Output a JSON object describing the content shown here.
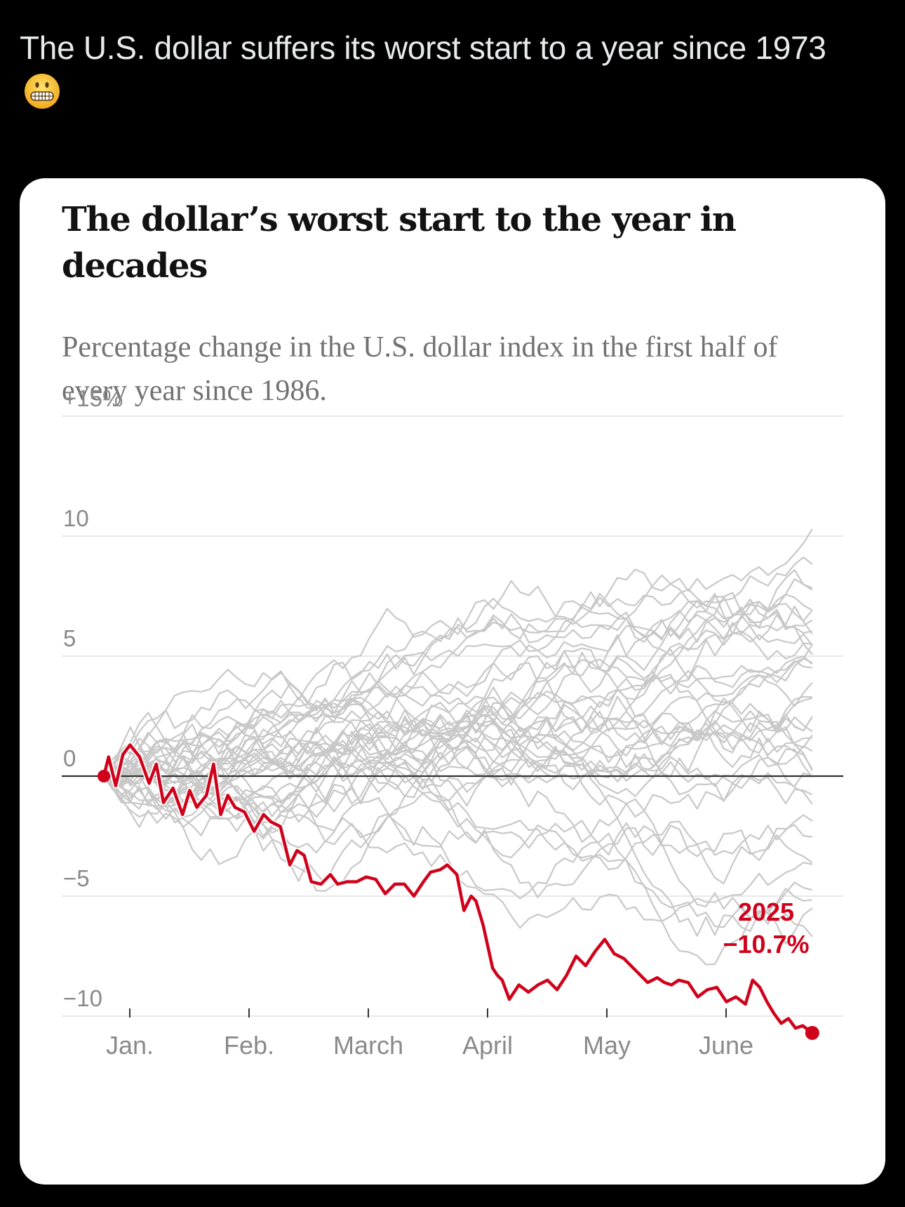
{
  "post": {
    "text": "The U.S. dollar suffers its worst start to a year since 1973",
    "emoji": "grimacing-face"
  },
  "chart_data": {
    "type": "line",
    "title": "The dollar’s worst start to the year in decades",
    "subtitle": "Percentage change in the U.S. dollar index in the first half of every year since 1986.",
    "xlabel": "",
    "ylabel": "",
    "xlim_months": [
      0,
      6
    ],
    "ylim": [
      -11,
      16
    ],
    "y_ticks": [
      {
        "value": 15,
        "label": "+15%"
      },
      {
        "value": 10,
        "label": "10"
      },
      {
        "value": 5,
        "label": "5"
      },
      {
        "value": 0,
        "label": "0"
      },
      {
        "value": -5,
        "label": "−5"
      },
      {
        "value": -10,
        "label": "−10"
      }
    ],
    "x_ticks": [
      {
        "value": 0,
        "label": "Jan."
      },
      {
        "value": 1,
        "label": "Feb."
      },
      {
        "value": 2,
        "label": "March"
      },
      {
        "value": 3,
        "label": "April"
      },
      {
        "value": 4,
        "label": "May"
      },
      {
        "value": 5,
        "label": "June"
      }
    ],
    "grid": true,
    "highlight": {
      "name": "2025",
      "label": "2025",
      "value_label": "−10.7%",
      "color": "#d0021b",
      "x": [
        0,
        0.04,
        0.1,
        0.16,
        0.22,
        0.3,
        0.38,
        0.44,
        0.5,
        0.58,
        0.66,
        0.72,
        0.78,
        0.86,
        0.92,
        0.98,
        1.04,
        1.1,
        1.18,
        1.26,
        1.34,
        1.4,
        1.48,
        1.56,
        1.62,
        1.68,
        1.74,
        1.82,
        1.9,
        1.96,
        2.04,
        2.12,
        2.2,
        2.28,
        2.36,
        2.44,
        2.52,
        2.6,
        2.68,
        2.74,
        2.82,
        2.88,
        2.96,
        3.02,
        3.08,
        3.12,
        3.18,
        3.26,
        3.3,
        3.34,
        3.4,
        3.48,
        3.56,
        3.64,
        3.72,
        3.8,
        3.88,
        3.96,
        4.04,
        4.12,
        4.2,
        4.28,
        4.36,
        4.42,
        4.48,
        4.56,
        4.64,
        4.7,
        4.76,
        4.82,
        4.9,
        4.98,
        5.06,
        5.14,
        5.22,
        5.3,
        5.38,
        5.44,
        5.5,
        5.56,
        5.62,
        5.68,
        5.74,
        5.8,
        5.86,
        5.94
      ],
      "y": [
        0,
        0.8,
        -0.4,
        0.9,
        1.3,
        0.8,
        -0.3,
        0.5,
        -1.1,
        -0.5,
        -1.6,
        -0.6,
        -1.3,
        -0.8,
        0.5,
        -1.6,
        -0.8,
        -1.3,
        -1.5,
        -2.3,
        -1.6,
        -1.9,
        -2.1,
        -3.7,
        -3.1,
        -3.3,
        -4.4,
        -4.5,
        -4.1,
        -4.5,
        -4.4,
        -4.4,
        -4.2,
        -4.3,
        -4.9,
        -4.5,
        -4.5,
        -5.0,
        -4.4,
        -4.0,
        -3.9,
        -3.7,
        -4.1,
        -5.6,
        -5.0,
        -5.2,
        -6.2,
        -8.0,
        -8.3,
        -8.5,
        -9.3,
        -8.7,
        -9.0,
        -8.7,
        -8.5,
        -8.9,
        -8.3,
        -7.5,
        -7.9,
        -7.3,
        -6.8,
        -7.4,
        -7.6,
        -7.9,
        -8.2,
        -8.6,
        -8.4,
        -8.6,
        -8.7,
        -8.5,
        -8.6,
        -9.2,
        -8.9,
        -8.8,
        -9.4,
        -9.2,
        -9.5,
        -8.5,
        -8.8,
        -9.4,
        -9.9,
        -10.3,
        -10.1,
        -10.5,
        -10.4,
        -10.7
      ]
    },
    "background_series_count": 39,
    "background_series_note": "Gray lines, one per year 1986-2024",
    "background_color": "#c8c8c8"
  }
}
